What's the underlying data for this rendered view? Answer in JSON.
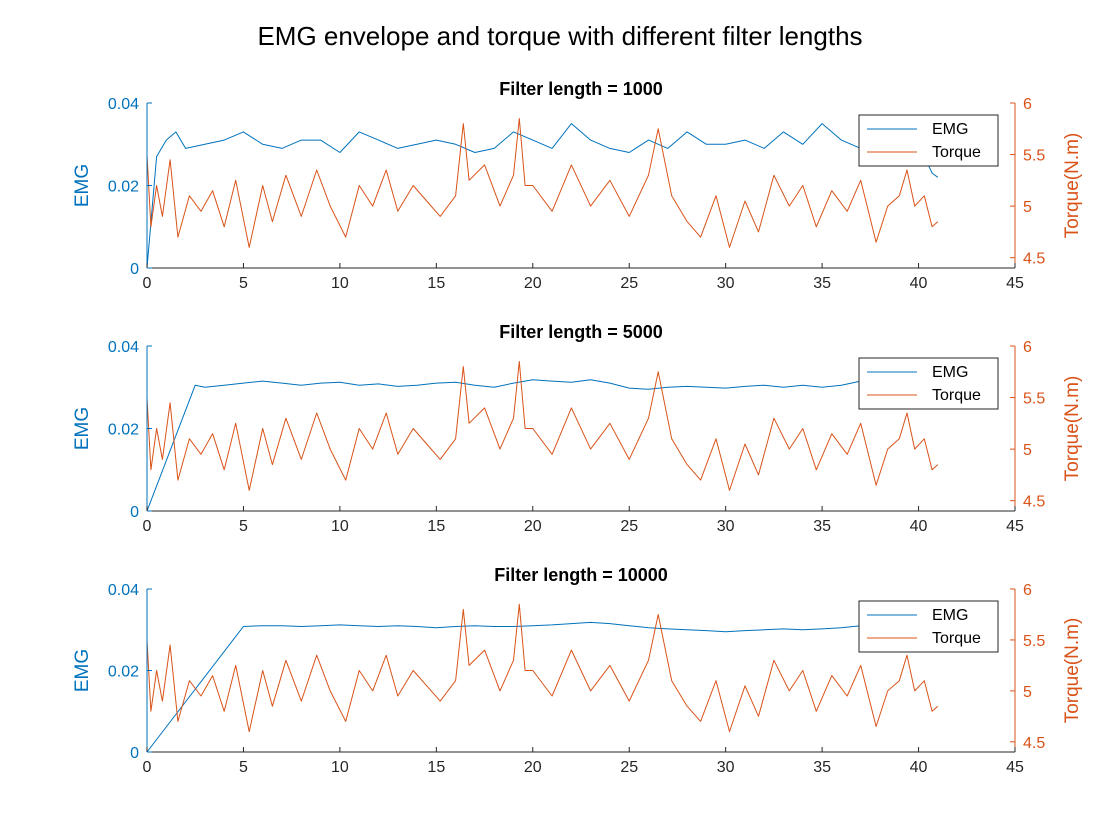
{
  "figure": {
    "title": "EMG envelope and torque with different filter lengths",
    "colors": {
      "emg": "#0072BD",
      "torque": "#D95319",
      "axis": "#262626"
    }
  },
  "chart_data": [
    {
      "type": "line",
      "title": "Filter length = 1000",
      "filter_length": 1000,
      "xlabel": "",
      "xlim": [
        0,
        45
      ],
      "xticks": [
        "0",
        "5",
        "10",
        "15",
        "20",
        "25",
        "30",
        "35",
        "40",
        "45"
      ],
      "ylabel_left": "EMG",
      "ylim_left": [
        0,
        0.04
      ],
      "yticks_left": [
        "0",
        "0.02",
        "0.04"
      ],
      "ylabel_right": "Torque(N.m)",
      "ylim_right": [
        4.4,
        6.0
      ],
      "yticks_right": [
        "4.5",
        "5",
        "5.5",
        "6"
      ],
      "legend": {
        "position": "top-right",
        "entries": [
          "EMG",
          "Torque"
        ]
      },
      "series": [
        {
          "name": "EMG",
          "axis": "left",
          "color": "#0072BD",
          "x": [
            0,
            0.5,
            1,
            1.5,
            2,
            3,
            4,
            5,
            6,
            7,
            8,
            9,
            10,
            11,
            12,
            13,
            14,
            15,
            16,
            17,
            18,
            19,
            20,
            21,
            22,
            23,
            24,
            25,
            26,
            27,
            28,
            29,
            30,
            31,
            32,
            33,
            34,
            35,
            36,
            37,
            38,
            39,
            40,
            40.7,
            41
          ],
          "values": [
            0,
            0.027,
            0.031,
            0.033,
            0.029,
            0.03,
            0.031,
            0.033,
            0.03,
            0.029,
            0.031,
            0.031,
            0.028,
            0.033,
            0.031,
            0.029,
            0.03,
            0.031,
            0.03,
            0.028,
            0.029,
            0.033,
            0.031,
            0.029,
            0.035,
            0.031,
            0.029,
            0.028,
            0.031,
            0.029,
            0.033,
            0.03,
            0.03,
            0.031,
            0.029,
            0.033,
            0.03,
            0.035,
            0.031,
            0.029,
            0.031,
            0.031,
            0.03,
            0.023,
            0.022
          ]
        },
        {
          "name": "Torque",
          "axis": "right",
          "color": "#D95319",
          "x": [
            0,
            0.2,
            0.5,
            0.8,
            1.2,
            1.6,
            2.2,
            2.8,
            3.4,
            4,
            4.6,
            5.3,
            6,
            6.5,
            7.2,
            8,
            8.8,
            9.5,
            10.3,
            11,
            11.7,
            12.4,
            13,
            13.8,
            14.5,
            15.2,
            16,
            16.4,
            16.7,
            17.5,
            18.3,
            19,
            19.3,
            19.6,
            20,
            21,
            22,
            23,
            24,
            25,
            26,
            26.5,
            27.2,
            28,
            28.7,
            29.5,
            30.2,
            31,
            31.7,
            32.5,
            33.3,
            34,
            34.7,
            35.5,
            36.3,
            37,
            37.8,
            38.4,
            39,
            39.4,
            39.8,
            40.3,
            40.7,
            41
          ],
          "values": [
            5.5,
            4.8,
            5.2,
            4.9,
            5.45,
            4.7,
            5.1,
            4.95,
            5.15,
            4.8,
            5.25,
            4.6,
            5.2,
            4.85,
            5.3,
            4.9,
            5.35,
            5.0,
            4.7,
            5.2,
            5.0,
            5.35,
            4.95,
            5.2,
            5.05,
            4.9,
            5.1,
            5.8,
            5.25,
            5.4,
            5.0,
            5.3,
            5.85,
            5.2,
            5.2,
            4.95,
            5.4,
            5.0,
            5.25,
            4.9,
            5.3,
            5.75,
            5.1,
            4.85,
            4.7,
            5.1,
            4.6,
            5.05,
            4.75,
            5.3,
            5.0,
            5.2,
            4.8,
            5.15,
            4.95,
            5.25,
            4.65,
            5.0,
            5.1,
            5.35,
            5.0,
            5.1,
            4.8,
            4.85
          ]
        }
      ]
    },
    {
      "type": "line",
      "title": "Filter length = 5000",
      "filter_length": 5000,
      "xlabel": "",
      "xlim": [
        0,
        45
      ],
      "xticks": [
        "0",
        "5",
        "10",
        "15",
        "20",
        "25",
        "30",
        "35",
        "40",
        "45"
      ],
      "ylabel_left": "EMG",
      "ylim_left": [
        0,
        0.04
      ],
      "yticks_left": [
        "0",
        "0.02",
        "0.04"
      ],
      "ylabel_right": "Torque(N.m)",
      "ylim_right": [
        4.4,
        6.0
      ],
      "yticks_right": [
        "4.5",
        "5",
        "5.5",
        "6"
      ],
      "legend": {
        "position": "top-right",
        "entries": [
          "EMG",
          "Torque"
        ]
      },
      "series": [
        {
          "name": "EMG",
          "axis": "left",
          "color": "#0072BD",
          "x": [
            0,
            2.5,
            3,
            4,
            5,
            6,
            7,
            8,
            9,
            10,
            11,
            12,
            13,
            14,
            15,
            16,
            17,
            18,
            19,
            20,
            21,
            22,
            23,
            24,
            25,
            26,
            27,
            28,
            29,
            30,
            31,
            32,
            33,
            34,
            35,
            36,
            37,
            38,
            39,
            40,
            41
          ],
          "values": [
            0,
            0.0305,
            0.03,
            0.0305,
            0.031,
            0.0315,
            0.031,
            0.0305,
            0.031,
            0.0312,
            0.0305,
            0.0308,
            0.0302,
            0.0305,
            0.031,
            0.0312,
            0.0305,
            0.03,
            0.031,
            0.0318,
            0.0315,
            0.0312,
            0.0318,
            0.031,
            0.0298,
            0.0295,
            0.03,
            0.0302,
            0.03,
            0.0298,
            0.0302,
            0.0305,
            0.03,
            0.0305,
            0.03,
            0.0305,
            0.0315,
            0.0318,
            0.0315,
            0.0312,
            0.031
          ]
        },
        {
          "name": "Torque",
          "axis": "right",
          "color": "#D95319",
          "x": [
            0,
            0.2,
            0.5,
            0.8,
            1.2,
            1.6,
            2.2,
            2.8,
            3.4,
            4,
            4.6,
            5.3,
            6,
            6.5,
            7.2,
            8,
            8.8,
            9.5,
            10.3,
            11,
            11.7,
            12.4,
            13,
            13.8,
            14.5,
            15.2,
            16,
            16.4,
            16.7,
            17.5,
            18.3,
            19,
            19.3,
            19.6,
            20,
            21,
            22,
            23,
            24,
            25,
            26,
            26.5,
            27.2,
            28,
            28.7,
            29.5,
            30.2,
            31,
            31.7,
            32.5,
            33.3,
            34,
            34.7,
            35.5,
            36.3,
            37,
            37.8,
            38.4,
            39,
            39.4,
            39.8,
            40.3,
            40.7,
            41
          ],
          "values": [
            5.5,
            4.8,
            5.2,
            4.9,
            5.45,
            4.7,
            5.1,
            4.95,
            5.15,
            4.8,
            5.25,
            4.6,
            5.2,
            4.85,
            5.3,
            4.9,
            5.35,
            5.0,
            4.7,
            5.2,
            5.0,
            5.35,
            4.95,
            5.2,
            5.05,
            4.9,
            5.1,
            5.8,
            5.25,
            5.4,
            5.0,
            5.3,
            5.85,
            5.2,
            5.2,
            4.95,
            5.4,
            5.0,
            5.25,
            4.9,
            5.3,
            5.75,
            5.1,
            4.85,
            4.7,
            5.1,
            4.6,
            5.05,
            4.75,
            5.3,
            5.0,
            5.2,
            4.8,
            5.15,
            4.95,
            5.25,
            4.65,
            5.0,
            5.1,
            5.35,
            5.0,
            5.1,
            4.8,
            4.85
          ]
        }
      ]
    },
    {
      "type": "line",
      "title": "Filter length = 10000",
      "filter_length": 10000,
      "xlabel": "",
      "xlim": [
        0,
        45
      ],
      "xticks": [
        "0",
        "5",
        "10",
        "15",
        "20",
        "25",
        "30",
        "35",
        "40",
        "45"
      ],
      "ylabel_left": "EMG",
      "ylim_left": [
        0,
        0.04
      ],
      "yticks_left": [
        "0",
        "0.02",
        "0.04"
      ],
      "ylabel_right": "Torque(N.m)",
      "ylim_right": [
        4.4,
        6.0
      ],
      "yticks_right": [
        "4.5",
        "5",
        "5.5",
        "6"
      ],
      "legend": {
        "position": "top-right",
        "entries": [
          "EMG",
          "Torque"
        ]
      },
      "series": [
        {
          "name": "EMG",
          "axis": "left",
          "color": "#0072BD",
          "x": [
            0,
            5,
            6,
            7,
            8,
            9,
            10,
            11,
            12,
            13,
            14,
            15,
            16,
            17,
            18,
            19,
            20,
            21,
            22,
            23,
            24,
            25,
            26,
            27,
            28,
            29,
            30,
            31,
            32,
            33,
            34,
            35,
            36,
            37,
            38,
            39,
            40,
            41
          ],
          "values": [
            0,
            0.0308,
            0.031,
            0.031,
            0.0308,
            0.031,
            0.0312,
            0.031,
            0.0308,
            0.031,
            0.0308,
            0.0305,
            0.0308,
            0.031,
            0.0308,
            0.0308,
            0.031,
            0.0312,
            0.0315,
            0.0318,
            0.0315,
            0.031,
            0.0305,
            0.0302,
            0.03,
            0.0298,
            0.0295,
            0.0298,
            0.03,
            0.0302,
            0.03,
            0.0302,
            0.0305,
            0.031,
            0.0312,
            0.031,
            0.0308,
            0.0308
          ]
        },
        {
          "name": "Torque",
          "axis": "right",
          "color": "#D95319",
          "x": [
            0,
            0.2,
            0.5,
            0.8,
            1.2,
            1.6,
            2.2,
            2.8,
            3.4,
            4,
            4.6,
            5.3,
            6,
            6.5,
            7.2,
            8,
            8.8,
            9.5,
            10.3,
            11,
            11.7,
            12.4,
            13,
            13.8,
            14.5,
            15.2,
            16,
            16.4,
            16.7,
            17.5,
            18.3,
            19,
            19.3,
            19.6,
            20,
            21,
            22,
            23,
            24,
            25,
            26,
            26.5,
            27.2,
            28,
            28.7,
            29.5,
            30.2,
            31,
            31.7,
            32.5,
            33.3,
            34,
            34.7,
            35.5,
            36.3,
            37,
            37.8,
            38.4,
            39,
            39.4,
            39.8,
            40.3,
            40.7,
            41
          ],
          "values": [
            5.5,
            4.8,
            5.2,
            4.9,
            5.45,
            4.7,
            5.1,
            4.95,
            5.15,
            4.8,
            5.25,
            4.6,
            5.2,
            4.85,
            5.3,
            4.9,
            5.35,
            5.0,
            4.7,
            5.2,
            5.0,
            5.35,
            4.95,
            5.2,
            5.05,
            4.9,
            5.1,
            5.8,
            5.25,
            5.4,
            5.0,
            5.3,
            5.85,
            5.2,
            5.2,
            4.95,
            5.4,
            5.0,
            5.25,
            4.9,
            5.3,
            5.75,
            5.1,
            4.85,
            4.7,
            5.1,
            4.6,
            5.05,
            4.75,
            5.3,
            5.0,
            5.2,
            4.8,
            5.15,
            4.95,
            5.25,
            4.65,
            5.0,
            5.1,
            5.35,
            5.0,
            5.1,
            4.8,
            4.85
          ]
        }
      ]
    }
  ]
}
